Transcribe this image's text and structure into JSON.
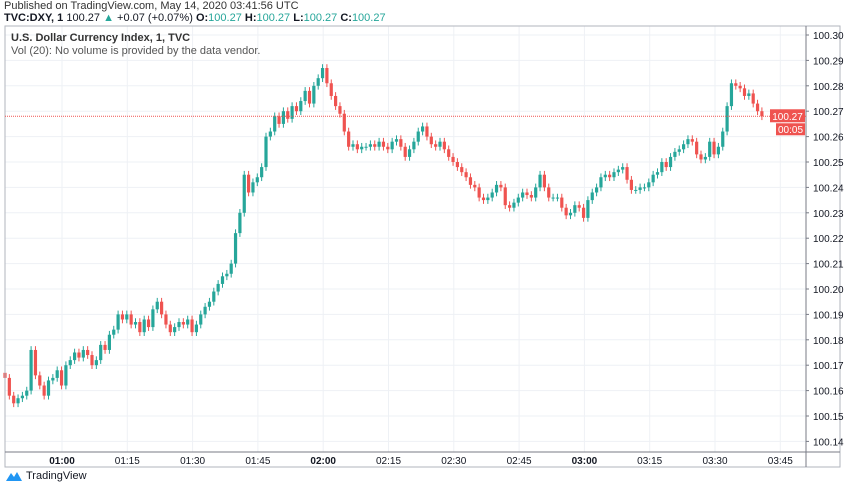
{
  "header": {
    "published": "Published on TradingView.com, May 14, 2020 03:41:56 UTC",
    "symbol": "TVC:DXY, 1",
    "last": "100.27",
    "change": "+0.07 (+0.07%)",
    "o_label": "O:",
    "o": "100.27",
    "h_label": "H:",
    "h": "100.27",
    "l_label": "L:",
    "l": "100.27",
    "c_label": "C:",
    "c": "100.27"
  },
  "legend": {
    "title": "U.S. Dollar Currency Index, 1, TVC",
    "volume": "Vol (20): No volume is provided by the data vendor."
  },
  "price_label": {
    "price": "100.27",
    "countdown": "00:05"
  },
  "footer": {
    "brand": "TradingView"
  },
  "colors": {
    "up": "#26a69a",
    "down": "#ef5350",
    "grid": "#eef1f5",
    "price_line": "#ef5350"
  },
  "chart_data": {
    "type": "candlestick",
    "interval": "1 minute",
    "start_time": "00:47",
    "y_ticks": [
      "100.30",
      "100.29",
      "100.28",
      "100.27",
      "100.26",
      "100.25",
      "100.24",
      "100.23",
      "100.22",
      "100.21",
      "100.20",
      "100.19",
      "100.18",
      "100.17",
      "100.16",
      "100.15",
      "100.14"
    ],
    "ylim": [
      100.14,
      100.3
    ],
    "x_ticks": [
      {
        "label": "01:00",
        "bold": true
      },
      {
        "label": "01:15"
      },
      {
        "label": "01:30"
      },
      {
        "label": "01:45"
      },
      {
        "label": "02:00",
        "bold": true
      },
      {
        "label": "02:15"
      },
      {
        "label": "02:30"
      },
      {
        "label": "02:45"
      },
      {
        "label": "03:00",
        "bold": true
      },
      {
        "label": "03:15"
      },
      {
        "label": "03:30"
      },
      {
        "label": "03:45"
      }
    ],
    "first_open": 100.167,
    "close": [
      100.165,
      100.158,
      100.155,
      100.157,
      100.158,
      100.16,
      100.176,
      100.166,
      100.162,
      100.158,
      100.164,
      100.165,
      100.168,
      100.162,
      100.17,
      100.172,
      100.175,
      100.173,
      100.176,
      100.174,
      100.17,
      100.172,
      100.178,
      100.176,
      100.182,
      100.184,
      100.19,
      100.188,
      100.19,
      100.186,
      100.187,
      100.183,
      100.188,
      100.185,
      100.192,
      100.195,
      100.19,
      100.186,
      100.183,
      100.185,
      100.187,
      100.186,
      100.188,
      100.183,
      100.186,
      100.19,
      100.193,
      100.195,
      100.199,
      100.202,
      100.205,
      100.206,
      100.21,
      100.222,
      100.23,
      100.245,
      100.238,
      100.242,
      100.244,
      100.248,
      100.26,
      100.262,
      100.268,
      100.265,
      100.27,
      100.267,
      100.272,
      100.27,
      100.274,
      100.278,
      100.273,
      100.28,
      100.283,
      100.287,
      100.281,
      100.276,
      100.272,
      100.269,
      100.262,
      100.256,
      100.257,
      100.255,
      100.256,
      100.256,
      100.257,
      100.256,
      100.258,
      100.256,
      100.255,
      100.258,
      100.259,
      100.256,
      100.252,
      100.255,
      100.258,
      100.262,
      100.264,
      100.26,
      100.257,
      100.256,
      100.258,
      100.255,
      100.252,
      100.25,
      100.248,
      100.246,
      100.244,
      100.241,
      100.24,
      100.236,
      100.235,
      100.236,
      100.238,
      100.241,
      100.24,
      100.233,
      100.232,
      100.234,
      100.236,
      100.238,
      100.237,
      100.236,
      100.24,
      100.245,
      100.24,
      100.236,
      100.236,
      100.236,
      100.232,
      100.229,
      100.23,
      100.233,
      100.232,
      100.228,
      100.235,
      100.238,
      100.24,
      100.244,
      100.245,
      100.244,
      100.246,
      100.247,
      100.248,
      100.243,
      100.239,
      100.239,
      100.24,
      100.24,
      100.242,
      100.245,
      100.246,
      100.25,
      100.248,
      100.252,
      100.254,
      100.255,
      100.257,
      100.259,
      100.258,
      100.253,
      100.251,
      100.252,
      100.258,
      100.253,
      100.256,
      100.262,
      100.272,
      100.281,
      100.28,
      100.279,
      100.276,
      100.277,
      100.273,
      100.27,
      100.268
    ],
    "last_price": 100.268,
    "grid": true
  }
}
